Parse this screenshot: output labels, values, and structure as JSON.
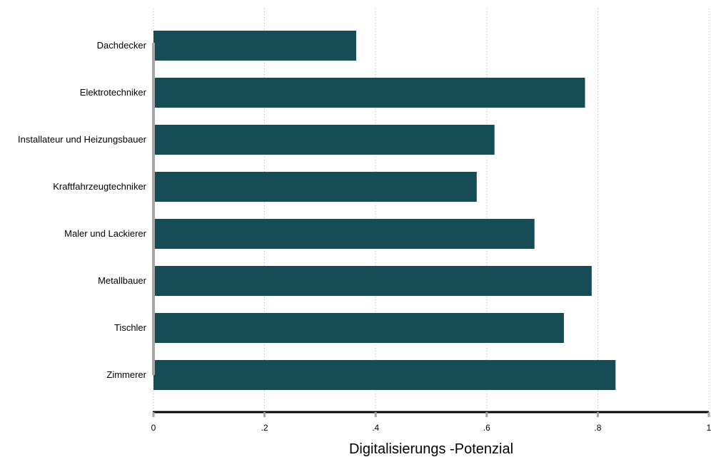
{
  "chart_data": {
    "type": "bar",
    "orientation": "horizontal",
    "categories": [
      "Dachdecker",
      "Elektrotechniker",
      "Installateur und Heizungsbauer",
      "Kraftfahrzeugtechniker",
      "Maler und Lackierer",
      "Metallbauer",
      "Tischler",
      "Zimmerer"
    ],
    "values": [
      0.365,
      0.777,
      0.614,
      0.582,
      0.686,
      0.789,
      0.739,
      0.832
    ],
    "xlabel": "Digitalisierungs -Potenzial",
    "ylabel": "",
    "xlim": [
      0,
      1
    ],
    "xticks": [
      0,
      0.2,
      0.4,
      0.6,
      0.8,
      1
    ],
    "xtick_labels": [
      "0",
      ".2",
      ".4",
      ".6",
      ".8",
      "1"
    ],
    "grid": "vertical dotted",
    "legend": "none",
    "bar_color": "#154c55",
    "axis_color": "#000000",
    "base_line_color": "#a6a6a6"
  }
}
